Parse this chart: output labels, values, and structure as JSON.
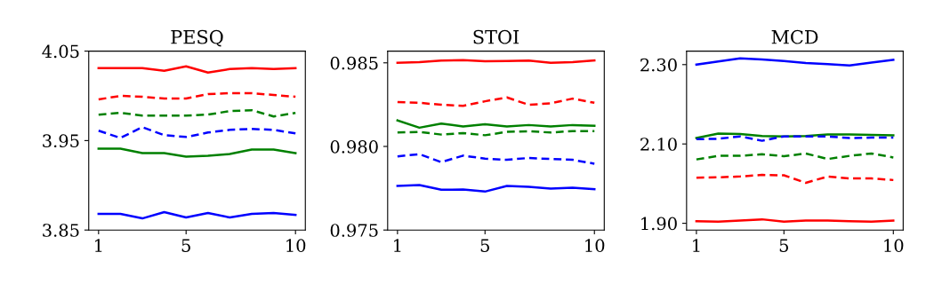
{
  "chart_data": [
    {
      "type": "line",
      "title": "PESQ",
      "x": [
        1,
        2,
        3,
        4,
        5,
        6,
        7,
        8,
        9,
        10
      ],
      "xlim": [
        0.55,
        10.45
      ],
      "xticks": [
        1,
        5,
        10
      ],
      "ylim": [
        3.85,
        4.05
      ],
      "yticks": [
        {
          "value": 3.85,
          "label": "3.85"
        },
        {
          "value": 3.95,
          "label": "3.95"
        },
        {
          "value": 4.05,
          "label": "4.05"
        }
      ],
      "grid": false,
      "marker": "none",
      "series": [
        {
          "color": "#ff0000",
          "line_style": "solid",
          "values": [
            4.031,
            4.031,
            4.031,
            4.028,
            4.033,
            4.026,
            4.03,
            4.031,
            4.03,
            4.031
          ]
        },
        {
          "color": "#ff0000",
          "line_style": "dashed",
          "values": [
            3.996,
            4.0,
            3.999,
            3.997,
            3.997,
            4.002,
            4.003,
            4.003,
            4.001,
            3.999
          ]
        },
        {
          "color": "#008000",
          "line_style": "dashed",
          "values": [
            3.979,
            3.981,
            3.978,
            3.978,
            3.978,
            3.979,
            3.983,
            3.984,
            3.977,
            3.981
          ]
        },
        {
          "color": "#0000ff",
          "line_style": "dashed",
          "values": [
            3.961,
            3.953,
            3.965,
            3.956,
            3.954,
            3.959,
            3.962,
            3.963,
            3.962,
            3.958
          ]
        },
        {
          "color": "#008000",
          "line_style": "solid",
          "values": [
            3.941,
            3.941,
            3.936,
            3.936,
            3.932,
            3.933,
            3.935,
            3.94,
            3.94,
            3.936
          ]
        },
        {
          "color": "#0000ff",
          "line_style": "solid",
          "values": [
            3.868,
            3.868,
            3.863,
            3.87,
            3.864,
            3.869,
            3.864,
            3.868,
            3.869,
            3.867
          ]
        }
      ]
    },
    {
      "type": "line",
      "title": "STOI",
      "x": [
        1,
        2,
        3,
        4,
        5,
        6,
        7,
        8,
        9,
        10
      ],
      "xlim": [
        0.55,
        10.45
      ],
      "xticks": [
        1,
        5,
        10
      ],
      "ylim": [
        0.975,
        0.9857
      ],
      "yticks": [
        0.975,
        {
          "value": 0.98,
          "label": "0.980"
        },
        0.985
      ],
      "grid": false,
      "marker": "none",
      "series": [
        {
          "color": "#ff0000",
          "line_style": "solid",
          "values": [
            0.985,
            0.98504,
            0.98513,
            0.98516,
            0.98509,
            0.98511,
            0.98513,
            0.985,
            0.98504,
            0.98514
          ]
        },
        {
          "color": "#ff0000",
          "line_style": "dashed",
          "values": [
            0.98265,
            0.98261,
            0.98249,
            0.98243,
            0.9827,
            0.98293,
            0.98249,
            0.98258,
            0.98286,
            0.98261
          ]
        },
        {
          "color": "#008000",
          "line_style": "solid",
          "values": [
            0.98156,
            0.98112,
            0.98137,
            0.98119,
            0.98133,
            0.98119,
            0.98128,
            0.98119,
            0.98128,
            0.98124
          ]
        },
        {
          "color": "#008000",
          "line_style": "dashed",
          "values": [
            0.98083,
            0.98087,
            0.98071,
            0.9808,
            0.98067,
            0.98087,
            0.98091,
            0.98083,
            0.98092,
            0.98092
          ]
        },
        {
          "color": "#0000ff",
          "line_style": "dashed",
          "values": [
            0.9794,
            0.97954,
            0.97906,
            0.97945,
            0.97927,
            0.9792,
            0.97931,
            0.97925,
            0.9792,
            0.97897
          ]
        },
        {
          "color": "#0000ff",
          "line_style": "solid",
          "values": [
            0.97764,
            0.97769,
            0.97741,
            0.97742,
            0.9773,
            0.97764,
            0.97758,
            0.97748,
            0.97753,
            0.97744
          ]
        }
      ]
    },
    {
      "type": "line",
      "title": "MCD",
      "x": [
        1,
        2,
        3,
        4,
        5,
        6,
        7,
        8,
        9,
        10
      ],
      "xlim": [
        0.55,
        10.45
      ],
      "xticks": [
        1,
        5,
        10
      ],
      "ylim": [
        1.883,
        2.334
      ],
      "yticks": [
        {
          "value": 1.9,
          "label": "1.90"
        },
        {
          "value": 2.1,
          "label": "2.10"
        },
        {
          "value": 2.3,
          "label": "2.30"
        }
      ],
      "grid": false,
      "marker": "none",
      "series": [
        {
          "color": "#0000ff",
          "line_style": "solid",
          "values": [
            2.3,
            2.308,
            2.316,
            2.313,
            2.309,
            2.304,
            2.301,
            2.298,
            2.305,
            2.312
          ]
        },
        {
          "color": "#008000",
          "line_style": "solid",
          "values": [
            2.115,
            2.126,
            2.125,
            2.12,
            2.119,
            2.12,
            2.124,
            2.124,
            2.123,
            2.122
          ]
        },
        {
          "color": "#0000ff",
          "line_style": "dashed",
          "values": [
            2.112,
            2.113,
            2.119,
            2.108,
            2.119,
            2.119,
            2.119,
            2.115,
            2.116,
            2.116
          ]
        },
        {
          "color": "#008000",
          "line_style": "dashed",
          "values": [
            2.061,
            2.07,
            2.07,
            2.074,
            2.069,
            2.076,
            2.062,
            2.07,
            2.076,
            2.066
          ]
        },
        {
          "color": "#ff0000",
          "line_style": "dashed",
          "values": [
            2.015,
            2.016,
            2.018,
            2.022,
            2.021,
            2.002,
            2.018,
            2.013,
            2.013,
            2.009
          ]
        },
        {
          "color": "#ff0000",
          "line_style": "solid",
          "values": [
            1.905,
            1.904,
            1.907,
            1.91,
            1.904,
            1.907,
            1.907,
            1.905,
            1.904,
            1.907
          ]
        }
      ]
    }
  ]
}
